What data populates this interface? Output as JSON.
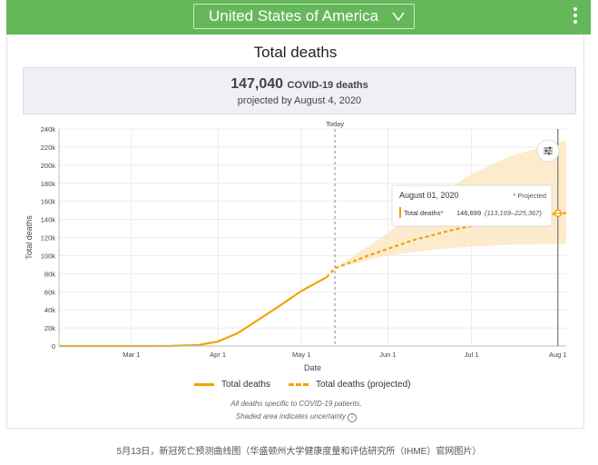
{
  "header": {
    "country": "United States of America",
    "chevron_icon": "chevron-down-icon",
    "menu_icon": "more-vert-icon"
  },
  "card": {
    "title": "Total deaths",
    "summary_value": "147,040",
    "summary_unit": "COVID-19 deaths",
    "summary_sub": "projected by August 4, 2020"
  },
  "chart_data": {
    "type": "line",
    "today_label": "Today",
    "xlabel": "Date",
    "ylabel": "Total deaths",
    "x_ticks": [
      "Mar 1",
      "Apr 1",
      "May 1",
      "Jun 1",
      "Jul 1",
      "Aug 1"
    ],
    "y_ticks": [
      "0",
      "20k",
      "40k",
      "60k",
      "80k",
      "100k",
      "120k",
      "140k",
      "160k",
      "180k",
      "200k",
      "220k",
      "240k"
    ],
    "ylim": [
      0,
      240000
    ],
    "x_range": [
      "2020-02-04",
      "2020-08-04"
    ],
    "today": "2020-05-13",
    "grid": true,
    "series": [
      {
        "name": "Total deaths",
        "style": "solid",
        "points": [
          [
            "2020-02-04",
            0
          ],
          [
            "2020-03-01",
            0
          ],
          [
            "2020-03-15",
            100
          ],
          [
            "2020-03-25",
            1000
          ],
          [
            "2020-04-01",
            5000
          ],
          [
            "2020-04-08",
            14000
          ],
          [
            "2020-04-15",
            28000
          ],
          [
            "2020-04-22",
            42000
          ],
          [
            "2020-05-01",
            61000
          ],
          [
            "2020-05-10",
            76000
          ]
        ]
      },
      {
        "name": "Total deaths (projected)",
        "style": "dashed",
        "points": [
          [
            "2020-05-10",
            76000
          ],
          [
            "2020-05-13",
            86000
          ],
          [
            "2020-05-25",
            100000
          ],
          [
            "2020-06-10",
            117000
          ],
          [
            "2020-06-25",
            129000
          ],
          [
            "2020-07-10",
            138000
          ],
          [
            "2020-07-25",
            143000
          ],
          [
            "2020-08-01",
            146699
          ],
          [
            "2020-08-04",
            147040
          ]
        ]
      }
    ],
    "uncertainty": {
      "name": "Shaded area indicates uncertainty",
      "upper": [
        [
          "2020-05-13",
          86000
        ],
        [
          "2020-06-01",
          125000
        ],
        [
          "2020-06-15",
          158000
        ],
        [
          "2020-07-01",
          190000
        ],
        [
          "2020-07-15",
          210000
        ],
        [
          "2020-08-04",
          228000
        ]
      ],
      "lower": [
        [
          "2020-05-13",
          86000
        ],
        [
          "2020-06-01",
          100000
        ],
        [
          "2020-06-15",
          106000
        ],
        [
          "2020-07-01",
          110000
        ],
        [
          "2020-07-15",
          112000
        ],
        [
          "2020-08-04",
          113000
        ]
      ]
    },
    "tooltip": {
      "date": "August 01, 2020",
      "projected_label": "* Projected",
      "series_label": "Total deaths*",
      "value": "146,699",
      "range": "(113,169–225,367)"
    },
    "legend": [
      "Total deaths",
      "Total deaths (projected)"
    ]
  },
  "notes": {
    "line1": "All deaths specific to COVID-19 patients.",
    "line2": "Shaded area indicates uncertainty"
  },
  "caption": "5月13日，新冠死亡预测曲线图（华盛顿州大学健康度量和评估研究所（IHME）官网图片）",
  "colors": {
    "header_green": "#64b85a",
    "line_orange": "#f0a30a",
    "band_fill": "#fce7c4"
  }
}
